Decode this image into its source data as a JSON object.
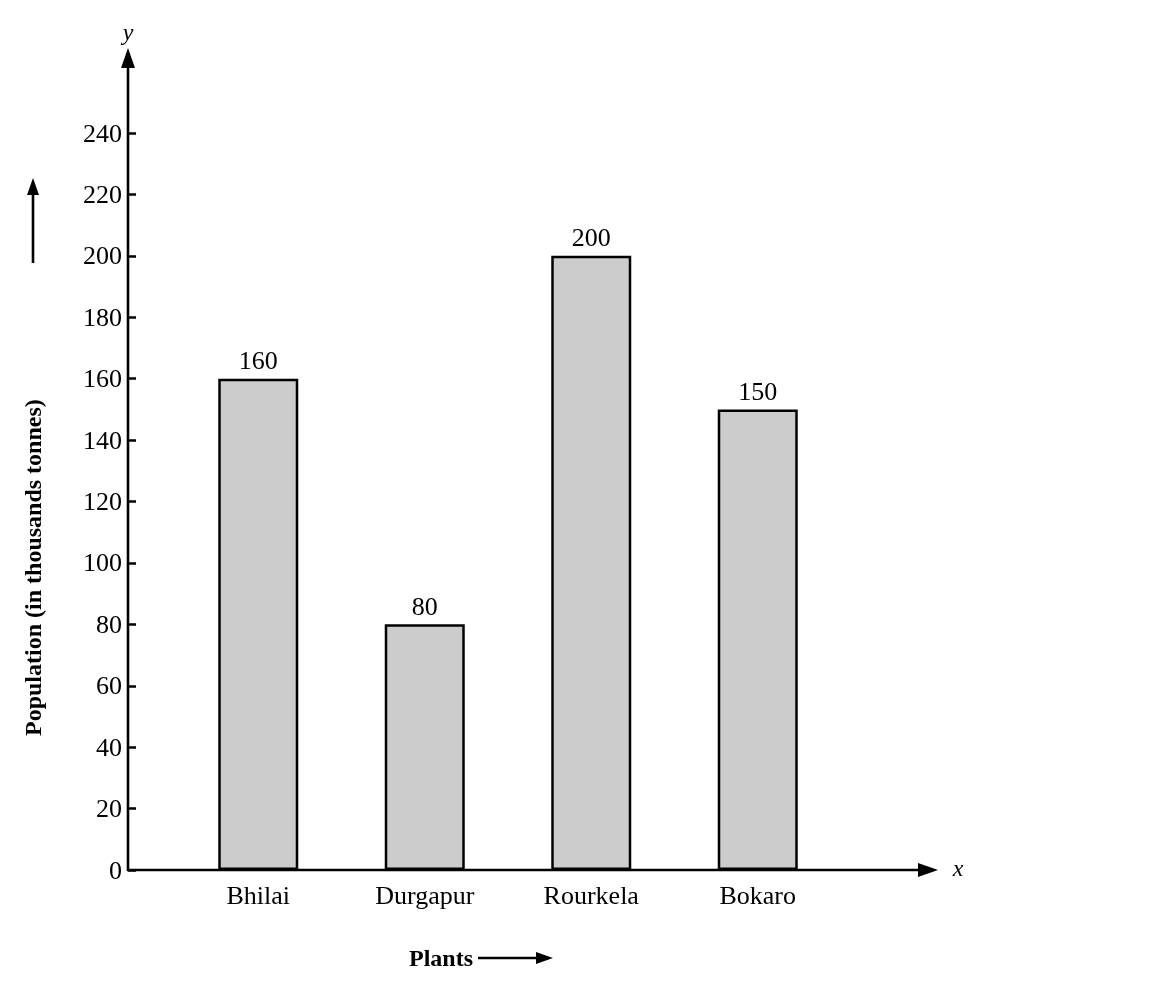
{
  "chart_data": {
    "type": "bar",
    "categories": [
      "Bhilai",
      "Durgapur",
      "Rourkela",
      "Bokaro"
    ],
    "values": [
      160,
      80,
      200,
      150
    ],
    "color": "#cccccc",
    "data_labels": true,
    "xlabel": "Plants",
    "ylabel": "Population (in thousands tonnes)",
    "annotations": [
      "y",
      "x"
    ],
    "ylim": [
      0,
      240
    ],
    "yticks": [
      0,
      20,
      40,
      60,
      80,
      100,
      120,
      140,
      160,
      180,
      200,
      220,
      240
    ],
    "grid": false
  }
}
